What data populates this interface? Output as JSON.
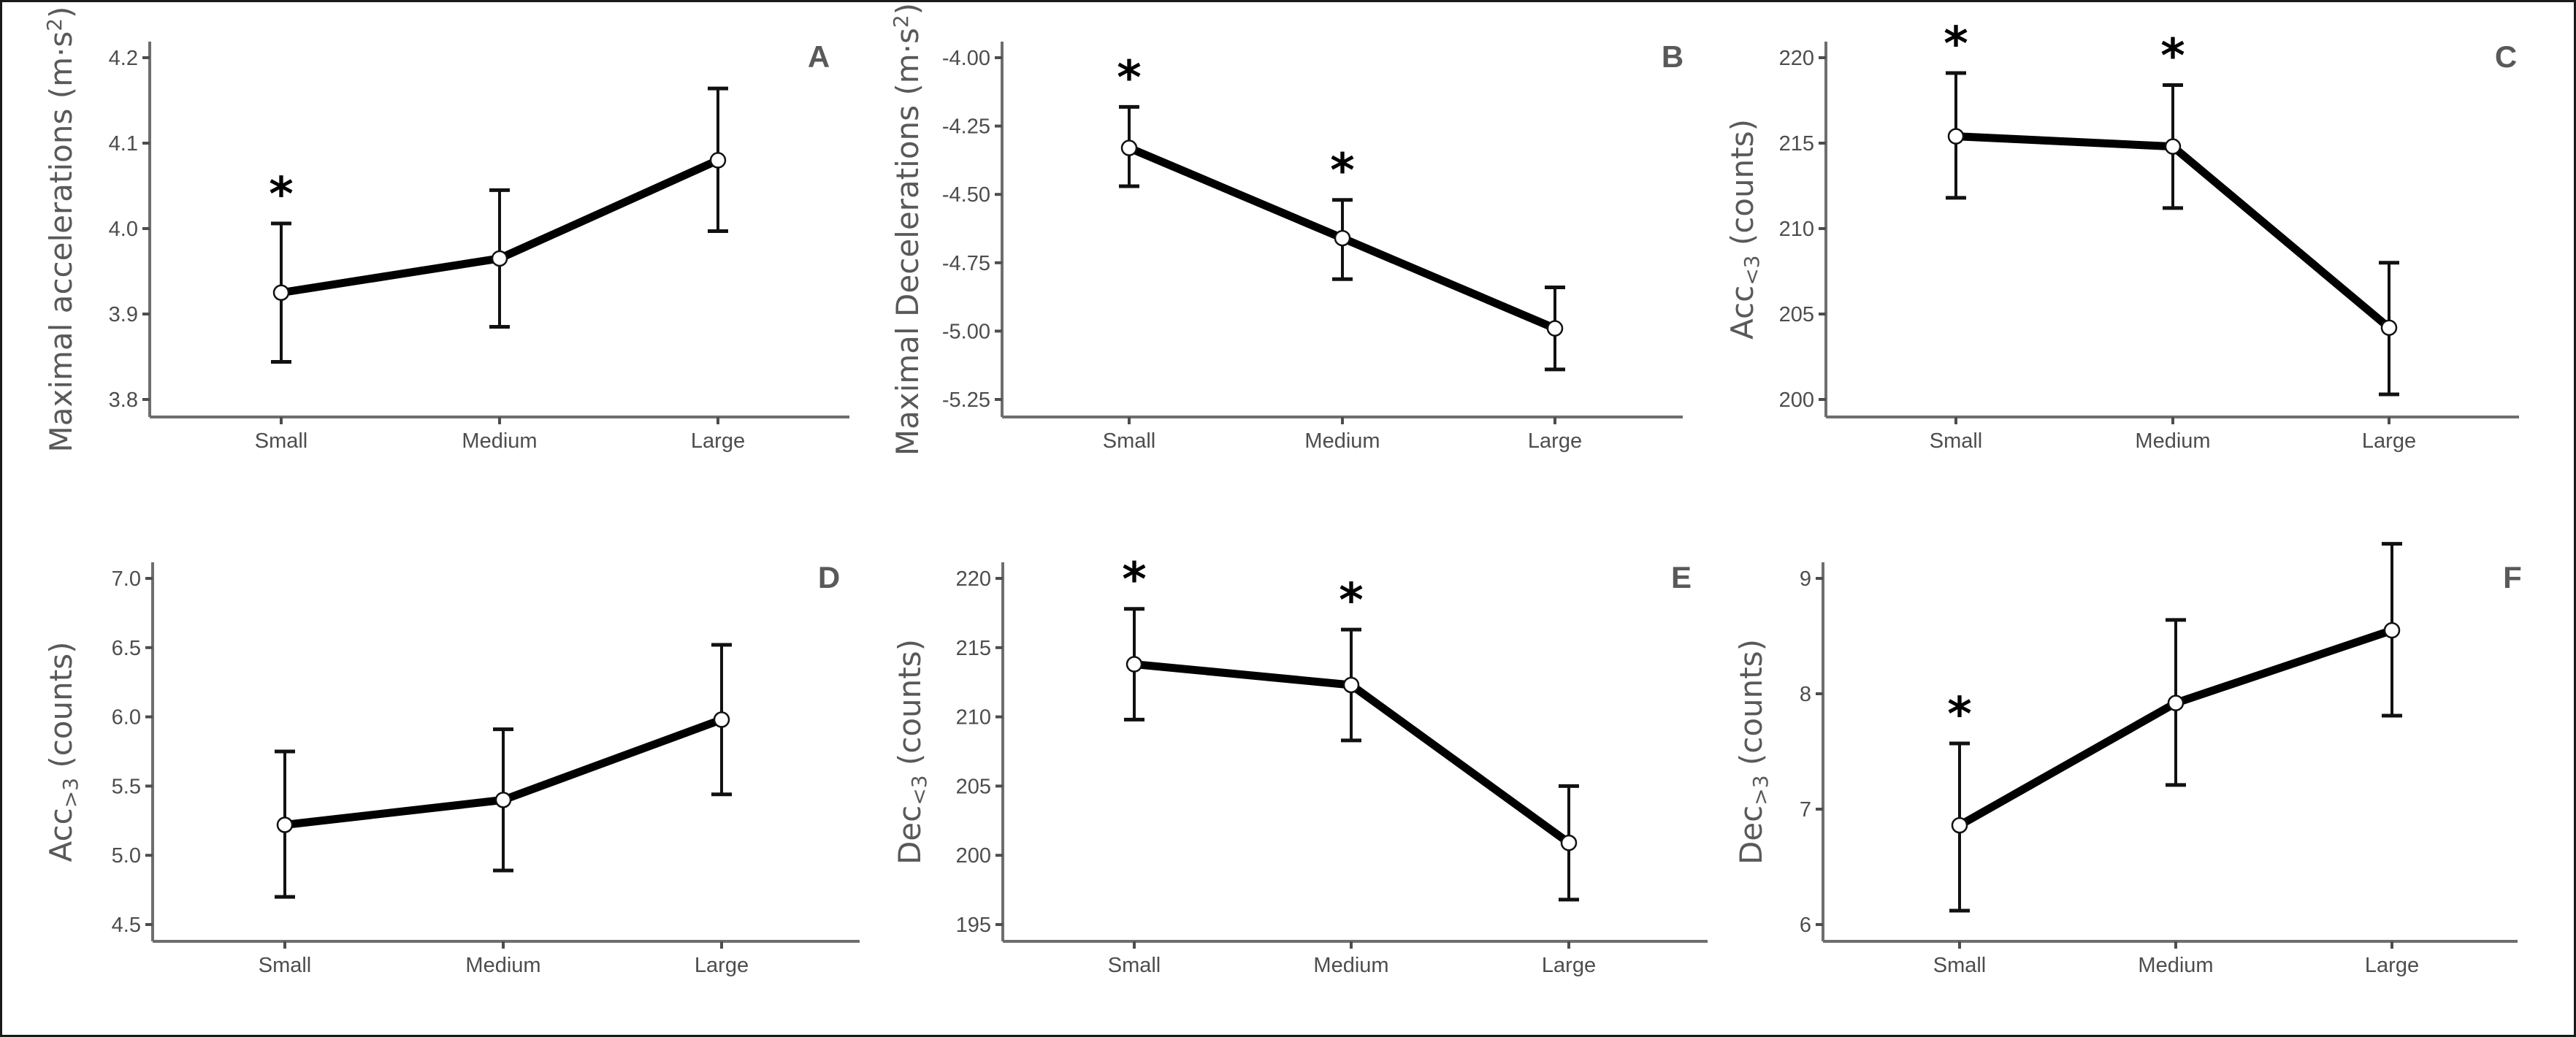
{
  "chart_data": [
    {
      "id": "A",
      "type": "line",
      "panel_label": "A",
      "title": "",
      "xlabel": "",
      "ylabel": "Maximal accelerations (m·s²)",
      "ylabel_main": "Maximal accelerations (m·s",
      "ylabel_sup": "2",
      "ylabel_tail": ")",
      "categories": [
        "Small",
        "Medium",
        "Large"
      ],
      "values": [
        3.925,
        3.965,
        4.08
      ],
      "error_upper": [
        4.006,
        4.045,
        4.164
      ],
      "error_lower": [
        3.844,
        3.885,
        3.997
      ],
      "significant": [
        true,
        false,
        false
      ],
      "significance_marker": "*",
      "yticks": [
        3.8,
        3.9,
        4.0,
        4.1,
        4.2
      ],
      "ytick_labels": [
        "3.8",
        "3.9",
        "4.0",
        "4.1",
        "4.2"
      ],
      "ylim": [
        3.78,
        4.22
      ],
      "grid": false,
      "legend": "none"
    },
    {
      "id": "B",
      "type": "line",
      "panel_label": "B",
      "title": "",
      "xlabel": "",
      "ylabel": "Maximal Decelerations (m·s²)",
      "ylabel_main": "Maximal Decelerations (m·s",
      "ylabel_sup": "2",
      "ylabel_tail": ")",
      "categories": [
        "Small",
        "Medium",
        "Large"
      ],
      "values": [
        -4.33,
        -4.66,
        -4.99
      ],
      "error_upper": [
        -4.18,
        -4.52,
        -4.84
      ],
      "error_lower": [
        -4.47,
        -4.81,
        -5.14
      ],
      "significant": [
        true,
        true,
        false
      ],
      "significance_marker": "*",
      "yticks": [
        -5.25,
        -5.0,
        -4.75,
        -4.5,
        -4.25,
        -4.0
      ],
      "ytick_labels": [
        "-5.25",
        "-5.00",
        "-4.75",
        "-4.50",
        "-4.25",
        "-4.00"
      ],
      "ylim": [
        -5.27,
        -3.94
      ],
      "grid": false,
      "legend": "none"
    },
    {
      "id": "C",
      "type": "line",
      "panel_label": "C",
      "title": "",
      "xlabel": "",
      "ylabel": "Acc<3 (counts)",
      "ylabel_main": "Acc",
      "ylabel_sub": "<3",
      "ylabel_tail": " (counts)",
      "categories": [
        "Small",
        "Medium",
        "Large"
      ],
      "values": [
        215.4,
        214.8,
        204.2
      ],
      "error_upper": [
        219.1,
        218.4,
        208.0
      ],
      "error_lower": [
        211.8,
        211.2,
        200.3
      ],
      "significant": [
        true,
        true,
        false
      ],
      "significance_marker": "*",
      "yticks": [
        200,
        205,
        210,
        215,
        220
      ],
      "ytick_labels": [
        "200",
        "205",
        "210",
        "215",
        "220"
      ],
      "ylim": [
        199,
        221
      ],
      "grid": false,
      "legend": "none"
    },
    {
      "id": "D",
      "type": "line",
      "panel_label": "D",
      "title": "",
      "xlabel": "",
      "ylabel": "Acc>3 (counts)",
      "ylabel_main": "Acc",
      "ylabel_sub": ">3",
      "ylabel_tail": " (counts)",
      "categories": [
        "Small",
        "Medium",
        "Large"
      ],
      "values": [
        5.22,
        5.4,
        5.98
      ],
      "error_upper": [
        5.75,
        5.91,
        6.52
      ],
      "error_lower": [
        4.7,
        4.89,
        5.44
      ],
      "significant": [
        false,
        false,
        false
      ],
      "significance_marker": "*",
      "yticks": [
        4.5,
        5.0,
        5.5,
        6.0,
        6.5,
        7.0
      ],
      "ytick_labels": [
        "4.5",
        "5.0",
        "5.5",
        "6.0",
        "6.5",
        "7.0"
      ],
      "ylim": [
        4.38,
        7.11
      ],
      "grid": false,
      "legend": "none"
    },
    {
      "id": "E",
      "type": "line",
      "panel_label": "E",
      "title": "",
      "xlabel": "",
      "ylabel": "Dec<3 (counts)",
      "ylabel_main": "Dec",
      "ylabel_sub": "<3",
      "ylabel_tail": " (counts)",
      "categories": [
        "Small",
        "Medium",
        "Large"
      ],
      "values": [
        213.8,
        212.3,
        200.9
      ],
      "error_upper": [
        217.8,
        216.3,
        205.0
      ],
      "error_lower": [
        209.8,
        208.3,
        196.8
      ],
      "significant": [
        true,
        true,
        false
      ],
      "significance_marker": "*",
      "yticks": [
        195,
        200,
        205,
        210,
        215,
        220
      ],
      "ytick_labels": [
        "195",
        "200",
        "205",
        "210",
        "215",
        "220"
      ],
      "ylim": [
        193.8,
        221.2
      ],
      "grid": false,
      "legend": "none"
    },
    {
      "id": "F",
      "type": "line",
      "panel_label": "F",
      "title": "",
      "xlabel": "",
      "ylabel": "Dec>3 (counts)",
      "ylabel_main": "Dec",
      "ylabel_sub": ">3",
      "ylabel_tail": " (counts)",
      "categories": [
        "Small",
        "Medium",
        "Large"
      ],
      "values": [
        6.86,
        7.92,
        8.55
      ],
      "error_upper": [
        7.57,
        8.64,
        9.3
      ],
      "error_lower": [
        6.12,
        7.21,
        7.81
      ],
      "significant": [
        true,
        false,
        false
      ],
      "significance_marker": "*",
      "yticks": [
        6,
        7,
        8,
        9
      ],
      "ytick_labels": [
        "6",
        "7",
        "8",
        "9"
      ],
      "ylim": [
        5.83,
        9.67
      ],
      "grid": false,
      "legend": "none"
    }
  ]
}
